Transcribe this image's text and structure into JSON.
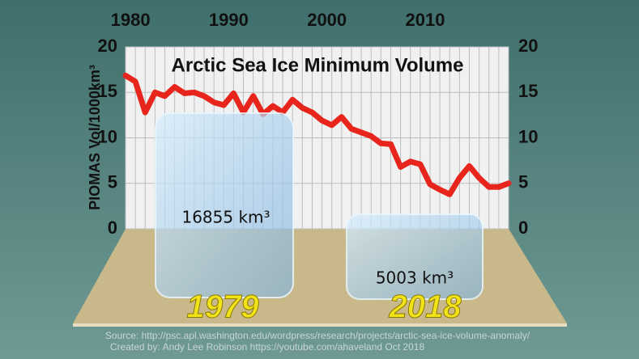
{
  "chart_data": {
    "type": "line",
    "title": "Arctic Sea Ice Minimum Volume",
    "y_label": "PIOMAS Vol/1000km³",
    "x": [
      1979,
      1980,
      1981,
      1982,
      1983,
      1984,
      1985,
      1986,
      1987,
      1988,
      1989,
      1990,
      1991,
      1992,
      1993,
      1994,
      1995,
      1996,
      1997,
      1998,
      1999,
      2000,
      2001,
      2002,
      2003,
      2004,
      2005,
      2006,
      2007,
      2008,
      2009,
      2010,
      2011,
      2012,
      2013,
      2014,
      2015,
      2016,
      2017,
      2018
    ],
    "series": [
      {
        "name": "PIOMAS minimum volume",
        "color": "#e8251c",
        "values": [
          16.855,
          16.2,
          12.8,
          15.0,
          14.6,
          15.6,
          14.9,
          15.0,
          14.6,
          13.9,
          13.6,
          14.9,
          12.8,
          14.6,
          12.6,
          13.5,
          12.8,
          14.2,
          13.3,
          12.8,
          11.9,
          11.4,
          12.3,
          11.0,
          10.6,
          10.2,
          9.4,
          9.3,
          6.8,
          7.4,
          7.1,
          4.9,
          4.3,
          3.8,
          5.6,
          6.9,
          5.6,
          4.6,
          4.6,
          5.003
        ]
      }
    ],
    "xlim": [
      1979,
      2018
    ],
    "xticks": [
      1980,
      1990,
      2000,
      2010
    ],
    "ylim": [
      0,
      20
    ],
    "yticks": [
      0,
      5,
      10,
      15,
      20
    ],
    "grid": true,
    "annotations": [
      {
        "year": "1979",
        "label": "16855 km³"
      },
      {
        "year": "2018",
        "label": "5003 km³"
      }
    ],
    "source": "Source: http://psc.apl.washington.edu/wordpress/research/projects/arctic-sea-ice-volume-anomaly/",
    "credit": "Created by: Andy Lee Robinson https://youtube.com/ahaveland Oct 2018"
  }
}
